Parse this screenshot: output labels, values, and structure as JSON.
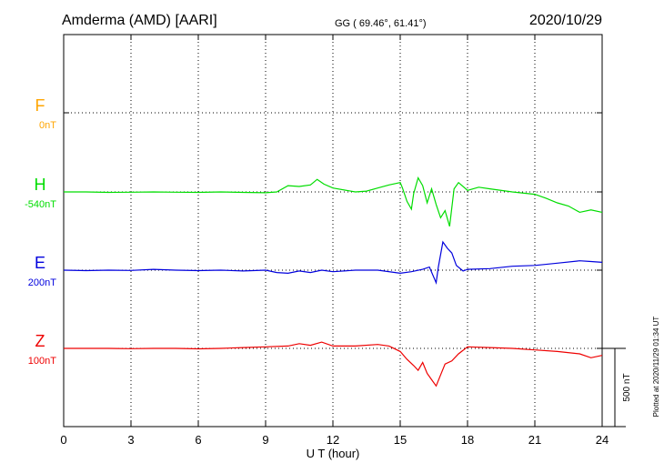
{
  "header": {
    "station": "Amderma (AMD)  [AARI]",
    "coords": "GG ( 69.46°,  61.41°)",
    "date": "2020/10/29"
  },
  "footer": {
    "plotted": "Plotted at 2020/11/29 01:34 UT"
  },
  "chart_data": {
    "type": "line",
    "title": "Amderma (AMD)  [AARI]",
    "xlabel": "U T (hour)",
    "x_ticks": [
      "0",
      "3",
      "6",
      "9",
      "12",
      "15",
      "18",
      "21",
      "24"
    ],
    "xlim": [
      0,
      24
    ],
    "ylim_nT": [
      -975,
      975
    ],
    "grid": "dotted",
    "scale_bar": "500 nT",
    "channels": [
      {
        "label": "F",
        "offset": "0nT",
        "color": "#FFA500",
        "baseline_nT": 0
      },
      {
        "label": "H",
        "offset": "-540nT",
        "color": "#00DD00",
        "baseline_nT": 0
      },
      {
        "label": "E",
        "offset": "200nT",
        "color": "#0000DD",
        "baseline_nT": 0
      },
      {
        "label": "Z",
        "offset": "100nT",
        "color": "#EE0000",
        "baseline_nT": 0
      }
    ],
    "series": [
      {
        "name": "H",
        "color": "#00DD00",
        "points": [
          [
            0,
            0
          ],
          [
            1,
            0
          ],
          [
            2,
            -3
          ],
          [
            3,
            -2
          ],
          [
            4,
            0
          ],
          [
            5,
            -2
          ],
          [
            6,
            -3
          ],
          [
            7,
            0
          ],
          [
            8,
            -3
          ],
          [
            9,
            -5
          ],
          [
            9.5,
            0
          ],
          [
            10,
            40
          ],
          [
            10.5,
            35
          ],
          [
            11,
            45
          ],
          [
            11.3,
            80
          ],
          [
            11.6,
            50
          ],
          [
            12,
            25
          ],
          [
            13,
            0
          ],
          [
            13.5,
            5
          ],
          [
            14,
            25
          ],
          [
            14.5,
            45
          ],
          [
            15,
            60
          ],
          [
            15.1,
            25
          ],
          [
            15.3,
            -60
          ],
          [
            15.5,
            -110
          ],
          [
            15.6,
            -10
          ],
          [
            15.8,
            90
          ],
          [
            16,
            40
          ],
          [
            16.2,
            -70
          ],
          [
            16.4,
            20
          ],
          [
            16.6,
            -80
          ],
          [
            16.8,
            -165
          ],
          [
            17,
            -120
          ],
          [
            17.2,
            -220
          ],
          [
            17.4,
            20
          ],
          [
            17.6,
            60
          ],
          [
            18,
            10
          ],
          [
            18.5,
            30
          ],
          [
            19,
            20
          ],
          [
            20,
            0
          ],
          [
            21,
            -15
          ],
          [
            21.5,
            -40
          ],
          [
            22,
            -70
          ],
          [
            22.5,
            -90
          ],
          [
            23,
            -130
          ],
          [
            23.5,
            -115
          ],
          [
            24,
            -130
          ]
        ]
      },
      {
        "name": "E",
        "color": "#0000DD",
        "points": [
          [
            0,
            0
          ],
          [
            1,
            -3
          ],
          [
            2,
            0
          ],
          [
            3,
            -2
          ],
          [
            4,
            5
          ],
          [
            5,
            0
          ],
          [
            6,
            -3
          ],
          [
            7,
            0
          ],
          [
            8,
            -5
          ],
          [
            9,
            0
          ],
          [
            9.5,
            -15
          ],
          [
            10,
            -20
          ],
          [
            10.5,
            -5
          ],
          [
            11,
            -15
          ],
          [
            11.5,
            0
          ],
          [
            12,
            -10
          ],
          [
            13,
            0
          ],
          [
            14,
            0
          ],
          [
            15,
            -20
          ],
          [
            15.5,
            -10
          ],
          [
            16,
            5
          ],
          [
            16.3,
            20
          ],
          [
            16.6,
            -80
          ],
          [
            16.7,
            20
          ],
          [
            16.9,
            180
          ],
          [
            17.1,
            140
          ],
          [
            17.3,
            110
          ],
          [
            17.5,
            30
          ],
          [
            17.8,
            -5
          ],
          [
            18,
            5
          ],
          [
            19,
            10
          ],
          [
            20,
            25
          ],
          [
            21,
            30
          ],
          [
            22,
            45
          ],
          [
            23,
            60
          ],
          [
            23.5,
            55
          ],
          [
            24,
            50
          ]
        ]
      },
      {
        "name": "Z",
        "color": "#EE0000",
        "points": [
          [
            0,
            0
          ],
          [
            1,
            0
          ],
          [
            2,
            0
          ],
          [
            3,
            -2
          ],
          [
            4,
            0
          ],
          [
            5,
            0
          ],
          [
            6,
            -3
          ],
          [
            7,
            0
          ],
          [
            8,
            5
          ],
          [
            9,
            10
          ],
          [
            10,
            15
          ],
          [
            10.5,
            30
          ],
          [
            11,
            20
          ],
          [
            11.5,
            40
          ],
          [
            12,
            15
          ],
          [
            13,
            15
          ],
          [
            14,
            25
          ],
          [
            14.5,
            15
          ],
          [
            15,
            -20
          ],
          [
            15.3,
            -70
          ],
          [
            15.6,
            -110
          ],
          [
            15.8,
            -140
          ],
          [
            16,
            -90
          ],
          [
            16.2,
            -160
          ],
          [
            16.4,
            -200
          ],
          [
            16.6,
            -240
          ],
          [
            16.8,
            -170
          ],
          [
            17,
            -100
          ],
          [
            17.3,
            -80
          ],
          [
            17.6,
            -35
          ],
          [
            18,
            10
          ],
          [
            19,
            5
          ],
          [
            20,
            0
          ],
          [
            21,
            -10
          ],
          [
            22,
            -20
          ],
          [
            23,
            -35
          ],
          [
            23.5,
            -60
          ],
          [
            24,
            -45
          ]
        ]
      }
    ]
  }
}
